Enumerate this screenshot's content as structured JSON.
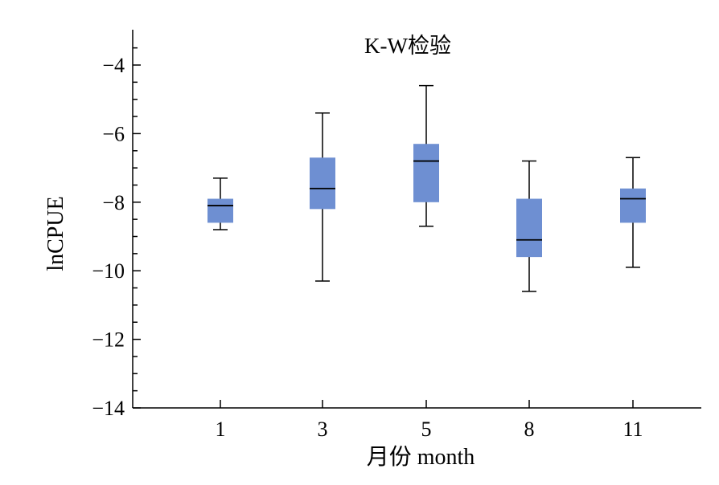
{
  "chart_data": {
    "type": "box",
    "title": "K-W检验",
    "xlabel": "月份 month",
    "ylabel": "lnCPUE",
    "categories": [
      "1",
      "3",
      "5",
      "8",
      "11"
    ],
    "ylim": [
      -14,
      -3.2
    ],
    "yticks": [
      -4,
      -6,
      -8,
      -10,
      -12,
      -14
    ],
    "ytick_labels": [
      "−4",
      "−6",
      "−8",
      "−10",
      "−12",
      "−14"
    ],
    "box_color": "#6E8FD2",
    "boxes": [
      {
        "category": "1",
        "whisker_low": -8.8,
        "q1": -8.6,
        "median": -8.1,
        "q3": -7.9,
        "whisker_high": -7.3
      },
      {
        "category": "3",
        "whisker_low": -10.3,
        "q1": -8.2,
        "median": -7.6,
        "q3": -6.7,
        "whisker_high": -5.4
      },
      {
        "category": "5",
        "whisker_low": -8.7,
        "q1": -8.0,
        "median": -6.8,
        "q3": -6.3,
        "whisker_high": -4.6
      },
      {
        "category": "8",
        "whisker_low": -10.6,
        "q1": -9.6,
        "median": -9.1,
        "q3": -7.9,
        "whisker_high": -6.8
      },
      {
        "category": "11",
        "whisker_low": -9.9,
        "q1": -8.6,
        "median": -7.9,
        "q3": -7.6,
        "whisker_high": -6.7
      }
    ]
  }
}
